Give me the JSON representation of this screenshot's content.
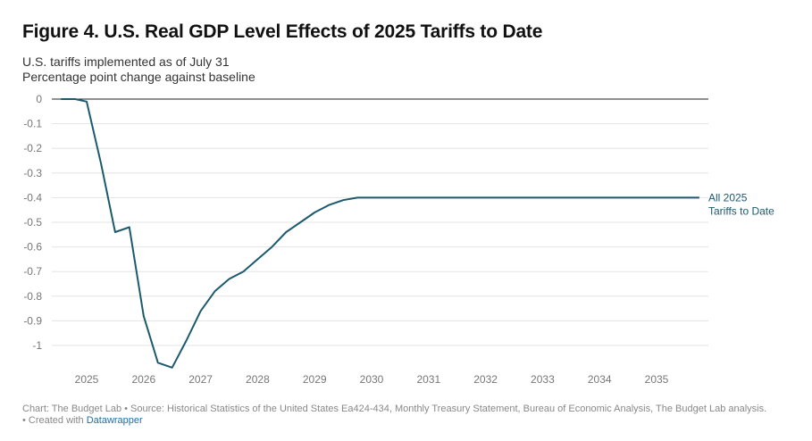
{
  "header": {
    "title": "Figure 4. U.S. Real GDP Level Effects of 2025 Tariffs to Date",
    "subtitle_line1": "U.S. tariffs implemented as of July 31",
    "subtitle_line2": "Percentage point change against baseline"
  },
  "footer": {
    "source": "Chart: The Budget Lab • Source: Historical Statistics of the United States Ea424-434, Monthly Treasury Statement, Bureau of Economic Analysis, The Budget Lab analysis.",
    "created_prefix": " • Created with ",
    "created_link": "Datawrapper"
  },
  "colors": {
    "series": "#1b5a6e",
    "grid": "#e3e3e3",
    "zero_line": "#222222",
    "tick_text": "#777777"
  },
  "chart_data": {
    "type": "line",
    "title": "Figure 4. U.S. Real GDP Level Effects of 2025 Tariffs to Date",
    "xlabel": "",
    "ylabel": "",
    "xlim": [
      2024.5,
      2035.9
    ],
    "ylim": [
      -1.1,
      0
    ],
    "x_ticks": [
      2025,
      2026,
      2027,
      2028,
      2029,
      2030,
      2031,
      2032,
      2033,
      2034,
      2035
    ],
    "x_tick_labels": [
      "2025",
      "2026",
      "2027",
      "2028",
      "2029",
      "2030",
      "2031",
      "2032",
      "2033",
      "2034",
      "2035"
    ],
    "y_ticks": [
      0,
      -0.1,
      -0.2,
      -0.3,
      -0.4,
      -0.5,
      -0.6,
      -0.7,
      -0.8,
      -0.9,
      -1
    ],
    "y_tick_labels": [
      "0",
      "-0.1",
      "-0.2",
      "-0.3",
      "-0.4",
      "-0.5",
      "-0.6",
      "-0.7",
      "-0.8",
      "-0.9",
      "-1"
    ],
    "grid": true,
    "series": [
      {
        "name": "All 2025 Tariffs to Date",
        "label_lines": [
          "All 2025",
          "Tariffs to Date"
        ],
        "color": "#1b5a6e",
        "x": [
          2024.55,
          2024.8,
          2025.0,
          2025.25,
          2025.5,
          2025.75,
          2026.0,
          2026.25,
          2026.5,
          2026.75,
          2027.0,
          2027.25,
          2027.5,
          2027.75,
          2028.0,
          2028.25,
          2028.5,
          2028.75,
          2029.0,
          2029.25,
          2029.5,
          2029.75,
          2030.0,
          2031.0,
          2032.0,
          2033.0,
          2034.0,
          2035.0,
          2035.75
        ],
        "y": [
          0,
          0,
          -0.01,
          -0.26,
          -0.54,
          -0.52,
          -0.88,
          -1.07,
          -1.09,
          -0.98,
          -0.86,
          -0.78,
          -0.73,
          -0.7,
          -0.65,
          -0.6,
          -0.54,
          -0.5,
          -0.46,
          -0.43,
          -0.41,
          -0.4,
          -0.4,
          -0.4,
          -0.4,
          -0.4,
          -0.4,
          -0.4,
          -0.4
        ]
      }
    ]
  }
}
